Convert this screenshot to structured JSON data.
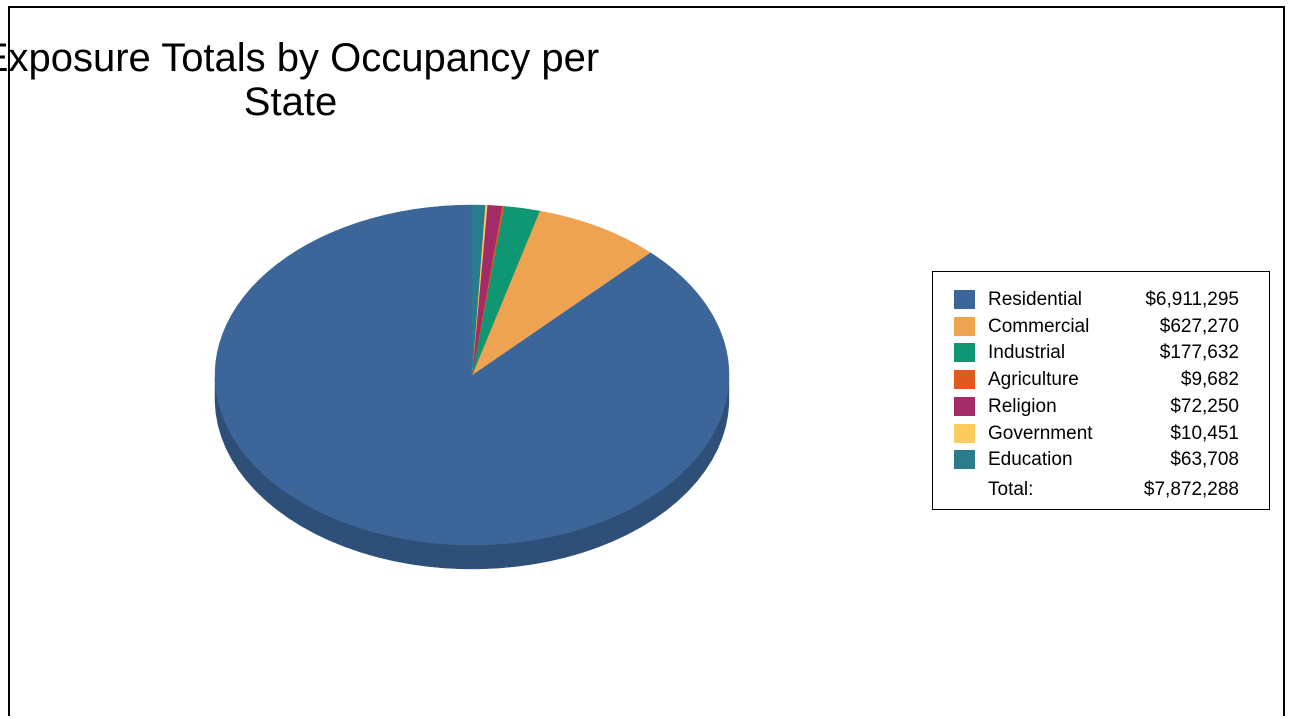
{
  "chart_data": {
    "type": "pie",
    "title_lines": [
      "Exposure Totals by Occupancy  per",
      "State"
    ],
    "slices": [
      {
        "label": "Residential",
        "value": 6911295,
        "value_text": "$6,911,295",
        "color": "#3C6699",
        "shade": "#2E4F77"
      },
      {
        "label": "Commercial",
        "value": 627270,
        "value_text": "$627,270",
        "color": "#EEA350",
        "shade": "#B97D3C"
      },
      {
        "label": "Industrial",
        "value": 177632,
        "value_text": "$177,632",
        "color": "#0F9774",
        "shade": "#0B735A"
      },
      {
        "label": "Agriculture",
        "value": 9682,
        "value_text": "$9,682",
        "color": "#E0591F",
        "shade": "#AD4418"
      },
      {
        "label": "Religion",
        "value": 72250,
        "value_text": "$72,250",
        "color": "#A32B67",
        "shade": "#7D214F"
      },
      {
        "label": "Government",
        "value": 10451,
        "value_text": "$10,451",
        "color": "#FBCB5E",
        "shade": "#C29D48"
      },
      {
        "label": "Education",
        "value": 63708,
        "value_text": "$63,708",
        "color": "#2A7B8B",
        "shade": "#205F6B"
      }
    ],
    "total_label": "Total:",
    "total_text": "$7,872,288",
    "total": 7872288,
    "legend_position": "right"
  }
}
